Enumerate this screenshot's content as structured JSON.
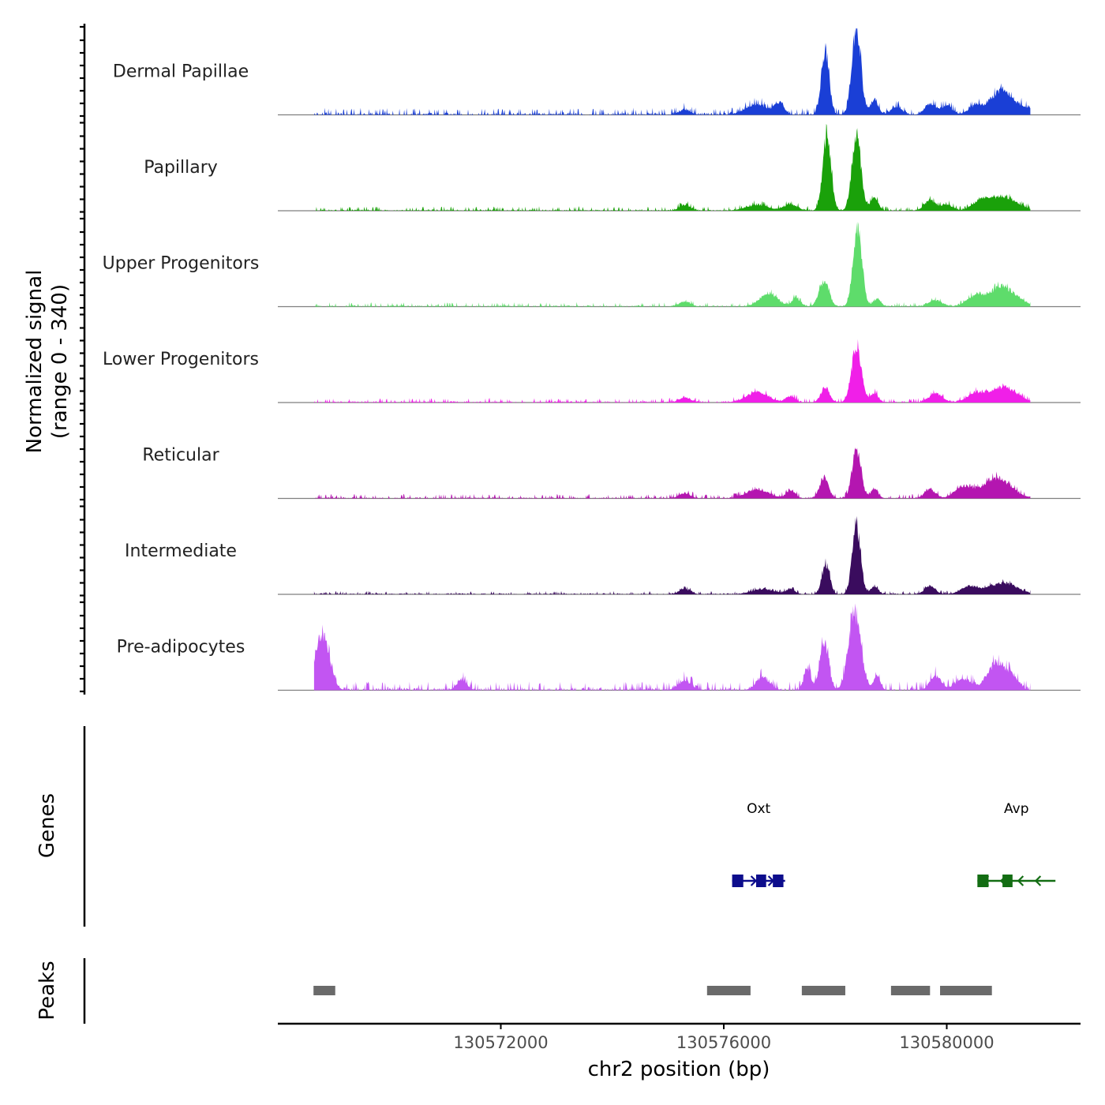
{
  "chart_data": {
    "type": "area",
    "y_title_line1": "Normalized signal",
    "y_title_line2": "(range 0 - 340)",
    "y_range": [
      0,
      340
    ],
    "x_title": "chr2 position (bp)",
    "x_range": [
      130568000,
      130582400
    ],
    "x_ticks": [
      130572000,
      130576000,
      130580000
    ],
    "x_tick_labels": [
      "130572000",
      "130576000",
      "130580000"
    ],
    "genes_title": "Genes",
    "peaks_title": "Peaks",
    "signal_start": 130568650,
    "signal_end": 130581500,
    "tracks": [
      {
        "name": "Dermal Papillae",
        "color": "#1a3fd6",
        "noise": 14,
        "peaks": [
          [
            130577820,
            250,
            70
          ],
          [
            130578380,
            340,
            80
          ],
          [
            130578700,
            60,
            70
          ],
          [
            130581000,
            95,
            220
          ],
          [
            130575300,
            20,
            100
          ],
          [
            130576600,
            40,
            200
          ],
          [
            130577000,
            45,
            80
          ],
          [
            130579100,
            30,
            100
          ],
          [
            130579700,
            40,
            100
          ],
          [
            130580000,
            35,
            100
          ],
          [
            130580500,
            30,
            120
          ],
          [
            130581500,
            20,
            100
          ]
        ]
      },
      {
        "name": "Papillary",
        "color": "#1aa10a",
        "noise": 9,
        "peaks": [
          [
            130577850,
            290,
            75
          ],
          [
            130578380,
            295,
            80
          ],
          [
            130578700,
            50,
            70
          ],
          [
            130581000,
            55,
            250
          ],
          [
            130575300,
            22,
            100
          ],
          [
            130576600,
            22,
            200
          ],
          [
            130577200,
            25,
            120
          ],
          [
            130579700,
            40,
            100
          ],
          [
            130580000,
            25,
            100
          ],
          [
            130580600,
            30,
            150
          ]
        ]
      },
      {
        "name": "Upper Progenitors",
        "color": "#5edc6b",
        "noise": 9,
        "peaks": [
          [
            130577800,
            95,
            90
          ],
          [
            130578400,
            305,
            80
          ],
          [
            130578750,
            30,
            70
          ],
          [
            130581000,
            75,
            250
          ],
          [
            130575300,
            20,
            100
          ],
          [
            130576800,
            50,
            160
          ],
          [
            130577300,
            30,
            80
          ],
          [
            130579800,
            25,
            120
          ],
          [
            130580500,
            35,
            150
          ]
        ]
      },
      {
        "name": "Lower Progenitors",
        "color": "#f01fe8",
        "noise": 9,
        "peaks": [
          [
            130577820,
            55,
            80
          ],
          [
            130578380,
            210,
            90
          ],
          [
            130578700,
            35,
            70
          ],
          [
            130581000,
            60,
            250
          ],
          [
            130575300,
            20,
            100
          ],
          [
            130576600,
            40,
            200
          ],
          [
            130577200,
            25,
            80
          ],
          [
            130579800,
            35,
            120
          ],
          [
            130580500,
            30,
            150
          ]
        ]
      },
      {
        "name": "Reticular",
        "color": "#b416b0",
        "noise": 9,
        "peaks": [
          [
            130577800,
            80,
            80
          ],
          [
            130578380,
            185,
            80
          ],
          [
            130578700,
            35,
            70
          ],
          [
            130580900,
            80,
            250
          ],
          [
            130575300,
            20,
            100
          ],
          [
            130576600,
            35,
            200
          ],
          [
            130577200,
            30,
            80
          ],
          [
            130579700,
            35,
            100
          ],
          [
            130580300,
            45,
            150
          ],
          [
            130581700,
            20,
            100
          ]
        ]
      },
      {
        "name": "Intermediate",
        "color": "#3a0c5e",
        "noise": 7,
        "peaks": [
          [
            130577830,
            120,
            70
          ],
          [
            130578380,
            265,
            75
          ],
          [
            130578700,
            28,
            70
          ],
          [
            130581000,
            45,
            250
          ],
          [
            130575300,
            22,
            100
          ],
          [
            130576700,
            20,
            200
          ],
          [
            130577200,
            20,
            80
          ],
          [
            130579700,
            30,
            100
          ],
          [
            130580400,
            30,
            150
          ]
        ]
      },
      {
        "name": "Pre-adipocytes",
        "color": "#c255f2",
        "noise": 18,
        "peaks": [
          [
            130568850,
            160,
            110
          ],
          [
            130568700,
            90,
            120
          ],
          [
            130577800,
            185,
            80
          ],
          [
            130578350,
            305,
            110
          ],
          [
            130577500,
            90,
            60
          ],
          [
            130578750,
            55,
            60
          ],
          [
            130580900,
            110,
            160
          ],
          [
            130579800,
            55,
            100
          ],
          [
            130576700,
            50,
            120
          ],
          [
            130571300,
            40,
            90
          ],
          [
            130575300,
            35,
            120
          ],
          [
            130580300,
            45,
            150
          ],
          [
            130581200,
            40,
            100
          ],
          [
            130581800,
            30,
            100
          ]
        ]
      }
    ],
    "genes": [
      {
        "name": "Oxt",
        "color": "#0d0d8c",
        "start": 130576150,
        "end": 130577100,
        "strand": "+",
        "exons": [
          [
            130576150,
            130576350
          ],
          [
            130576580,
            130576760
          ],
          [
            130576880,
            130577070
          ]
        ]
      },
      {
        "name": "Avp",
        "color": "#136d13",
        "start": 130580550,
        "end": 130581950,
        "strand": "-",
        "exons": [
          [
            130580550,
            130580750
          ],
          [
            130581000,
            130581180
          ]
        ]
      }
    ],
    "peaks": [
      [
        130568640,
        130569030
      ],
      [
        130575700,
        130576480
      ],
      [
        130577400,
        130578180
      ],
      [
        130579000,
        130579700
      ],
      [
        130579880,
        130580810
      ]
    ]
  }
}
